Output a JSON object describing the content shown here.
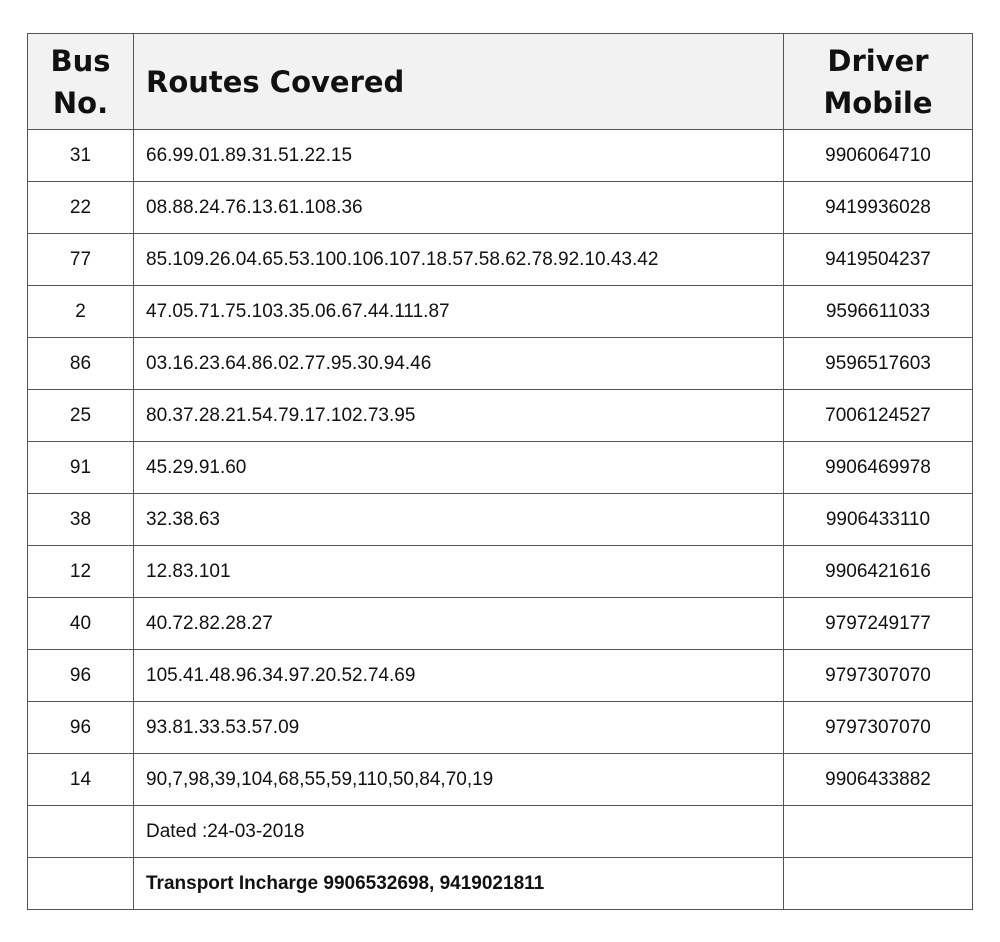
{
  "headers": {
    "bus_no_line1": "Bus",
    "bus_no_line2": "No.",
    "routes": "Routes Covered",
    "mobile_line1": "Driver",
    "mobile_line2": "Mobile"
  },
  "rows": [
    {
      "bus": "31",
      "routes": "66.99.01.89.31.51.22.15",
      "mobile": "9906064710"
    },
    {
      "bus": "22",
      "routes": "08.88.24.76.13.61.108.36",
      "mobile": "9419936028"
    },
    {
      "bus": "77",
      "routes": "85.109.26.04.65.53.100.106.107.18.57.58.62.78.92.10.43.42",
      "mobile": "9419504237"
    },
    {
      "bus": "2",
      "routes": "47.05.71.75.103.35.06.67.44.111.87",
      "mobile": "9596611033"
    },
    {
      "bus": "86",
      "routes": "03.16.23.64.86.02.77.95.30.94.46",
      "mobile": "9596517603"
    },
    {
      "bus": "25",
      "routes": "80.37.28.21.54.79.17.102.73.95",
      "mobile": "7006124527"
    },
    {
      "bus": "91",
      "routes": "45.29.91.60",
      "mobile": "9906469978"
    },
    {
      "bus": "38",
      "routes": "32.38.63",
      "mobile": "9906433110"
    },
    {
      "bus": "12",
      "routes": "12.83.101",
      "mobile": "9906421616"
    },
    {
      "bus": "40",
      "routes": "40.72.82.28.27",
      "mobile": "9797249177"
    },
    {
      "bus": "96",
      "routes": "105.41.48.96.34.97.20.52.74.69",
      "mobile": "9797307070"
    },
    {
      "bus": "96",
      "routes": "93.81.33.53.57.09",
      "mobile": "9797307070"
    },
    {
      "bus": "14",
      "routes": "90,7,98,39,104,68,55,59,110,50,84,70,19",
      "mobile": "9906433882"
    }
  ],
  "footer": {
    "dated": "Dated :24-03-2018",
    "incharge": "Transport Incharge 9906532698,  9419021811"
  }
}
